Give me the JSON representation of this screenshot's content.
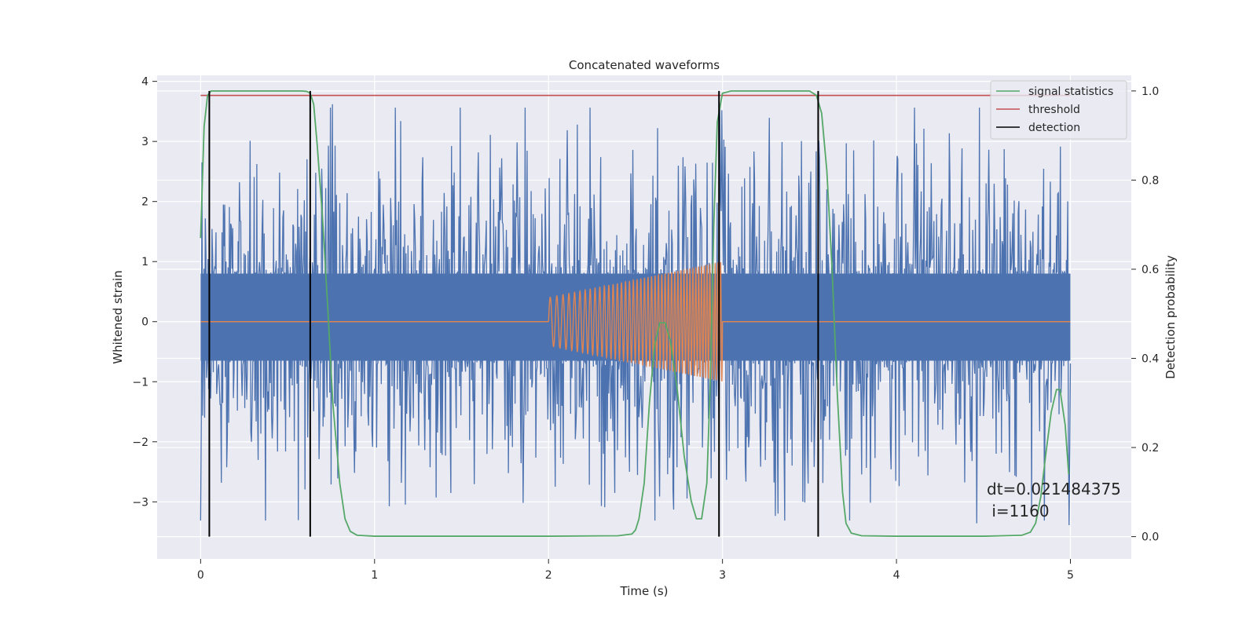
{
  "chart_data": {
    "type": "line",
    "title": "Concatenated waveforms",
    "xlabel": "Time (s)",
    "ylabel": "Whitened strain",
    "y2label": "Detection probability",
    "xlim": [
      -0.25,
      5.35
    ],
    "ylim": [
      -3.95,
      4.1
    ],
    "y2lim": [
      -0.05,
      1.035
    ],
    "xticks": [
      0,
      1,
      2,
      3,
      4,
      5
    ],
    "xtick_labels": [
      "0",
      "1",
      "2",
      "3",
      "4",
      "5"
    ],
    "yticks": [
      -3,
      -2,
      -1,
      0,
      1,
      2,
      3,
      4
    ],
    "ytick_labels": [
      "−3",
      "−2",
      "−1",
      "0",
      "1",
      "2",
      "3",
      "4"
    ],
    "y2ticks": [
      0.0,
      0.2,
      0.4,
      0.6,
      0.8,
      1.0
    ],
    "y2tick_labels": [
      "0.0",
      "0.2",
      "0.4",
      "0.6",
      "0.8",
      "1.0"
    ],
    "grid": true,
    "legend_position": "top-right",
    "legend": [
      {
        "label": "signal statistics",
        "color": "#55a868"
      },
      {
        "label": "threshold",
        "color": "#c44e52"
      },
      {
        "label": "detection",
        "color": "#000000"
      }
    ],
    "colors": {
      "background": "#eaeaf2",
      "grid": "#ffffff",
      "strain": "#4c72b0",
      "template": "#dd8452",
      "signal": "#55a868",
      "threshold": "#c44e52",
      "detection": "#000000"
    },
    "strain_noise": {
      "t_start": 0,
      "t_end": 5,
      "band_low": -0.65,
      "band_high": 0.8,
      "peak_min": -3.6,
      "peak_max": 3.75
    },
    "template_chirp": {
      "t_start": 2.0,
      "t_end": 3.0,
      "amp_start": 0.4,
      "amp_end": 1.0,
      "cycles": 46
    },
    "signal_statistics": {
      "t": [
        0,
        0.02,
        0.04,
        0.06,
        0.08,
        0.12,
        0.2,
        0.4,
        0.5,
        0.58,
        0.61,
        0.63,
        0.65,
        0.67,
        0.7,
        0.73,
        0.76,
        0.8,
        0.83,
        0.86,
        0.9,
        1.0,
        2.0,
        2.4,
        2.48,
        2.5,
        2.52,
        2.55,
        2.58,
        2.61,
        2.64,
        2.67,
        2.7,
        2.74,
        2.78,
        2.82,
        2.85,
        2.88,
        2.91,
        2.93,
        2.95,
        2.97,
        3.0,
        3.05,
        3.2,
        3.5,
        3.54,
        3.57,
        3.6,
        3.63,
        3.66,
        3.69,
        3.71,
        3.74,
        3.8,
        4.0,
        4.5,
        4.72,
        4.77,
        4.8,
        4.83,
        4.86,
        4.89,
        4.92,
        4.94,
        4.97,
        4.99
      ],
      "y": [
        0.67,
        0.92,
        0.99,
        1.0,
        1.0,
        1.0,
        1.0,
        1.0,
        1.0,
        1.0,
        0.999,
        0.995,
        0.97,
        0.88,
        0.72,
        0.52,
        0.3,
        0.12,
        0.04,
        0.012,
        0.003,
        0.001,
        0.001,
        0.002,
        0.006,
        0.015,
        0.04,
        0.12,
        0.3,
        0.43,
        0.48,
        0.48,
        0.44,
        0.33,
        0.18,
        0.08,
        0.04,
        0.04,
        0.12,
        0.35,
        0.7,
        0.93,
        0.995,
        1.0,
        1.0,
        1.0,
        0.99,
        0.95,
        0.82,
        0.6,
        0.32,
        0.1,
        0.03,
        0.008,
        0.002,
        0.001,
        0.001,
        0.003,
        0.01,
        0.03,
        0.09,
        0.19,
        0.28,
        0.33,
        0.33,
        0.25,
        0.14
      ]
    },
    "threshold_value": 0.99,
    "threshold_range": [
      0,
      5
    ],
    "detections": [
      0.05,
      0.63,
      2.98,
      3.55
    ],
    "annotation_lines": [
      "dt=0.021484375",
      " i=1160"
    ]
  }
}
